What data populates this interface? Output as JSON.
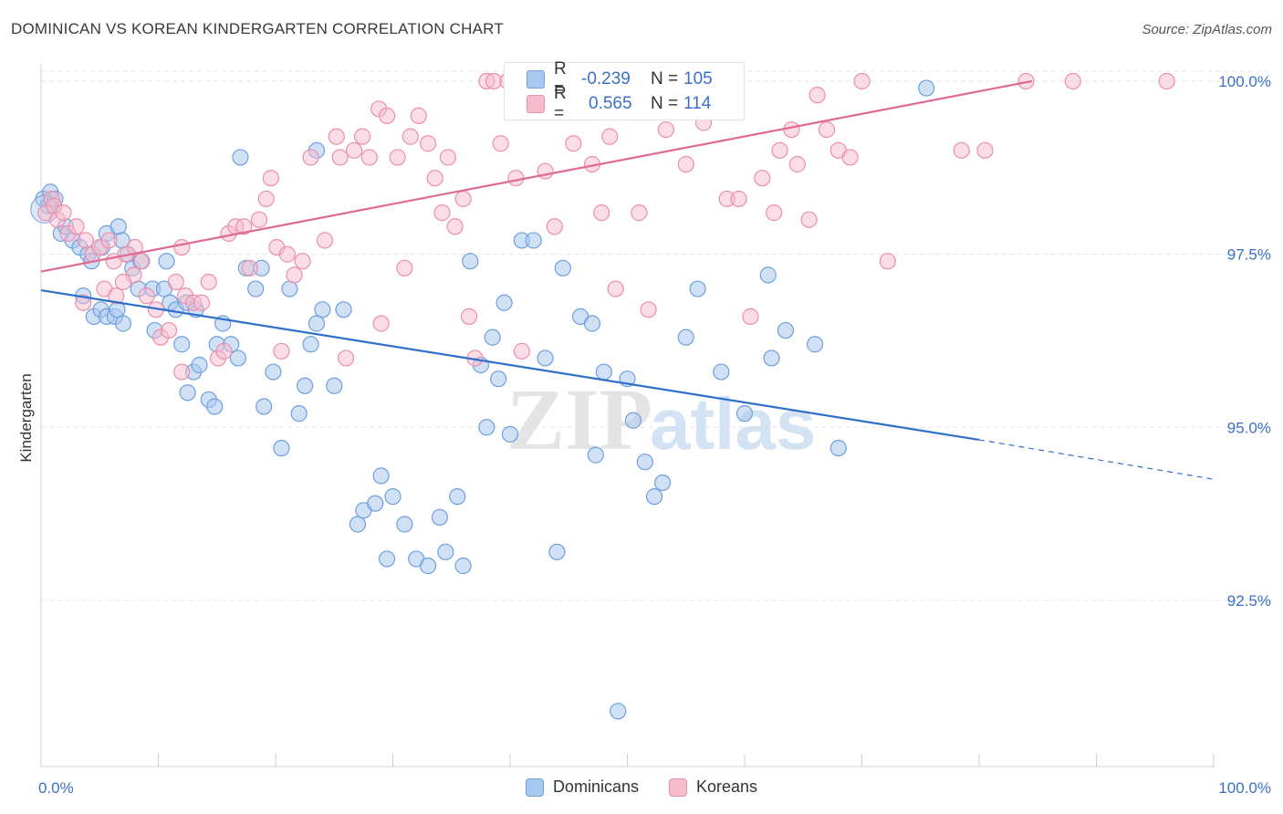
{
  "title": "DOMINICAN VS KOREAN KINDERGARTEN CORRELATION CHART",
  "source": "Source: ZipAtlas.com",
  "watermark": {
    "zip": "ZIP",
    "atlas": "atlas"
  },
  "legend_box": [
    {
      "r_label": "R =",
      "r_value": "-0.239",
      "n_label": "N =",
      "n_value": "105"
    },
    {
      "r_label": "R =",
      "r_value": "0.565",
      "n_label": "N =",
      "n_value": "114"
    }
  ],
  "legend": [
    "Dominicans",
    "Koreans"
  ],
  "colors": {
    "dominicans_fill": "#a9c8ef",
    "dominicans_stroke": "#6f9fdc",
    "dominicans_line": "#2f6fcc",
    "koreans_fill": "#f6bccd",
    "koreans_stroke": "#ea8fab",
    "koreans_line": "#e06a93",
    "tick_label": "#3a70c8"
  },
  "chart_data": {
    "type": "scatter",
    "title": "DOMINICAN VS KOREAN KINDERGARTEN CORRELATION CHART",
    "xlabel": "",
    "ylabel": "Kindergarten",
    "xlim": [
      0,
      100
    ],
    "ylim": [
      90.1,
      100.25
    ],
    "x_ticks_labels": [
      "0.0%",
      "100.0%"
    ],
    "y_ticks": [
      92.5,
      95.0,
      97.5,
      100.0
    ],
    "y_tick_labels": [
      "92.5%",
      "95.0%",
      "97.5%",
      "100.0%"
    ],
    "grid": true,
    "legend_position": "bottom",
    "series": [
      {
        "name": "Dominicans",
        "r": -0.239,
        "n": 105,
        "trend": {
          "x0": 0,
          "y0": 96.98,
          "x1": 80,
          "y1": 94.82,
          "dash_to_x": 100,
          "dash_to_y": 94.25
        },
        "points": [
          [
            0.2,
            98.3
          ],
          [
            0.6,
            98.2
          ],
          [
            0.8,
            98.4
          ],
          [
            1.2,
            98.3
          ],
          [
            1.7,
            97.8
          ],
          [
            2.1,
            97.9
          ],
          [
            2.7,
            97.7
          ],
          [
            3.3,
            97.6
          ],
          [
            4.0,
            97.5
          ],
          [
            4.3,
            97.4
          ],
          [
            5.2,
            97.6
          ],
          [
            5.6,
            97.8
          ],
          [
            6.6,
            97.9
          ],
          [
            6.9,
            97.7
          ],
          [
            7.4,
            97.5
          ],
          [
            7.8,
            97.3
          ],
          [
            8.5,
            97.4
          ],
          [
            3.6,
            96.9
          ],
          [
            4.5,
            96.6
          ],
          [
            5.1,
            96.7
          ],
          [
            5.6,
            96.6
          ],
          [
            6.3,
            96.6
          ],
          [
            6.5,
            96.7
          ],
          [
            7.0,
            96.5
          ],
          [
            8.3,
            97.0
          ],
          [
            9.5,
            97.0
          ],
          [
            9.7,
            96.4
          ],
          [
            10.5,
            97.0
          ],
          [
            10.7,
            97.4
          ],
          [
            11.0,
            96.8
          ],
          [
            11.5,
            96.7
          ],
          [
            12.4,
            96.8
          ],
          [
            13.2,
            96.7
          ],
          [
            12.0,
            96.2
          ],
          [
            12.5,
            95.5
          ],
          [
            13.0,
            95.8
          ],
          [
            13.5,
            95.9
          ],
          [
            14.3,
            95.4
          ],
          [
            14.8,
            95.3
          ],
          [
            15.0,
            96.2
          ],
          [
            15.5,
            96.5
          ],
          [
            16.2,
            96.2
          ],
          [
            16.8,
            96.0
          ],
          [
            17.5,
            97.3
          ],
          [
            18.3,
            97.0
          ],
          [
            18.8,
            97.3
          ],
          [
            19.0,
            95.3
          ],
          [
            19.8,
            95.8
          ],
          [
            20.5,
            94.7
          ],
          [
            21.2,
            97.0
          ],
          [
            22.0,
            95.2
          ],
          [
            22.5,
            95.6
          ],
          [
            23.0,
            96.2
          ],
          [
            23.5,
            96.5
          ],
          [
            24.0,
            96.7
          ],
          [
            25.0,
            95.6
          ],
          [
            25.8,
            96.7
          ],
          [
            27.0,
            93.6
          ],
          [
            27.5,
            93.8
          ],
          [
            28.5,
            93.9
          ],
          [
            29.0,
            94.3
          ],
          [
            29.5,
            93.1
          ],
          [
            30.0,
            94.0
          ],
          [
            31.0,
            93.6
          ],
          [
            32.0,
            93.1
          ],
          [
            33.0,
            93.0
          ],
          [
            34.0,
            93.7
          ],
          [
            34.5,
            93.2
          ],
          [
            35.5,
            94.0
          ],
          [
            36.0,
            93.0
          ],
          [
            36.6,
            97.4
          ],
          [
            37.5,
            95.9
          ],
          [
            38.0,
            95.0
          ],
          [
            38.5,
            96.3
          ],
          [
            39.0,
            95.7
          ],
          [
            39.5,
            96.8
          ],
          [
            40.0,
            94.9
          ],
          [
            41.0,
            97.7
          ],
          [
            42.0,
            97.7
          ],
          [
            43.0,
            96.0
          ],
          [
            44.5,
            97.3
          ],
          [
            46.0,
            96.6
          ],
          [
            47.0,
            96.5
          ],
          [
            47.3,
            94.6
          ],
          [
            48.0,
            95.8
          ],
          [
            50.0,
            95.7
          ],
          [
            50.5,
            95.1
          ],
          [
            51.5,
            94.5
          ],
          [
            52.3,
            94.0
          ],
          [
            53.0,
            94.2
          ],
          [
            55.0,
            96.3
          ],
          [
            56.0,
            97.0
          ],
          [
            58.0,
            95.8
          ],
          [
            62.0,
            97.2
          ],
          [
            63.5,
            96.4
          ],
          [
            66.0,
            96.2
          ],
          [
            17.0,
            98.9
          ],
          [
            23.5,
            99.0
          ],
          [
            40.5,
            100.0
          ],
          [
            60.0,
            95.2
          ],
          [
            62.3,
            96.0
          ],
          [
            68.0,
            94.7
          ],
          [
            75.5,
            99.9
          ],
          [
            44.0,
            93.2
          ],
          [
            49.2,
            90.9
          ]
        ]
      },
      {
        "name": "Koreans",
        "r": 0.565,
        "n": 114,
        "trend": {
          "x0": 0,
          "y0": 97.25,
          "x1": 84.5,
          "y1": 100.0
        },
        "points": [
          [
            0.4,
            98.1
          ],
          [
            0.9,
            98.3
          ],
          [
            1.1,
            98.2
          ],
          [
            1.4,
            98.0
          ],
          [
            1.9,
            98.1
          ],
          [
            2.3,
            97.8
          ],
          [
            3.0,
            97.9
          ],
          [
            3.8,
            97.7
          ],
          [
            4.4,
            97.5
          ],
          [
            5.0,
            97.6
          ],
          [
            5.8,
            97.7
          ],
          [
            6.2,
            97.4
          ],
          [
            7.2,
            97.5
          ],
          [
            7.9,
            97.2
          ],
          [
            8.6,
            97.4
          ],
          [
            3.6,
            96.8
          ],
          [
            5.4,
            97.0
          ],
          [
            6.4,
            96.9
          ],
          [
            7.0,
            97.1
          ],
          [
            8.0,
            97.6
          ],
          [
            9.0,
            96.9
          ],
          [
            9.8,
            96.7
          ],
          [
            10.2,
            96.3
          ],
          [
            10.9,
            96.4
          ],
          [
            11.5,
            97.1
          ],
          [
            12.0,
            97.6
          ],
          [
            12.3,
            96.9
          ],
          [
            13.0,
            96.8
          ],
          [
            13.7,
            96.8
          ],
          [
            14.3,
            97.1
          ],
          [
            15.1,
            96.0
          ],
          [
            15.6,
            96.1
          ],
          [
            16.0,
            97.8
          ],
          [
            16.6,
            97.9
          ],
          [
            17.3,
            97.9
          ],
          [
            17.8,
            97.3
          ],
          [
            18.6,
            98.0
          ],
          [
            19.2,
            98.3
          ],
          [
            19.6,
            98.6
          ],
          [
            20.1,
            97.6
          ],
          [
            20.5,
            96.1
          ],
          [
            21.0,
            97.5
          ],
          [
            21.6,
            97.2
          ],
          [
            22.3,
            97.4
          ],
          [
            23.0,
            98.9
          ],
          [
            24.2,
            97.7
          ],
          [
            25.2,
            99.2
          ],
          [
            25.5,
            98.9
          ],
          [
            26.0,
            96.0
          ],
          [
            26.7,
            99.0
          ],
          [
            27.4,
            99.2
          ],
          [
            28.0,
            98.9
          ],
          [
            28.8,
            99.6
          ],
          [
            29.0,
            96.5
          ],
          [
            29.5,
            99.5
          ],
          [
            30.4,
            98.9
          ],
          [
            31.0,
            97.3
          ],
          [
            31.5,
            99.2
          ],
          [
            32.2,
            99.5
          ],
          [
            33.0,
            99.1
          ],
          [
            33.6,
            98.6
          ],
          [
            34.2,
            98.1
          ],
          [
            34.7,
            98.9
          ],
          [
            35.3,
            97.9
          ],
          [
            36.0,
            98.3
          ],
          [
            36.5,
            96.6
          ],
          [
            37.0,
            96.0
          ],
          [
            38.0,
            100.0
          ],
          [
            38.6,
            100.0
          ],
          [
            39.2,
            99.1
          ],
          [
            39.8,
            100.0
          ],
          [
            40.5,
            98.6
          ],
          [
            41.0,
            96.1
          ],
          [
            41.6,
            100.0
          ],
          [
            42.2,
            99.6
          ],
          [
            43.0,
            98.7
          ],
          [
            43.8,
            97.9
          ],
          [
            44.6,
            100.0
          ],
          [
            45.4,
            99.1
          ],
          [
            46.2,
            99.7
          ],
          [
            47.0,
            98.8
          ],
          [
            47.8,
            98.1
          ],
          [
            48.5,
            99.2
          ],
          [
            49.0,
            97.0
          ],
          [
            49.6,
            99.6
          ],
          [
            50.2,
            100.0
          ],
          [
            51.0,
            98.1
          ],
          [
            51.8,
            96.7
          ],
          [
            53.3,
            99.3
          ],
          [
            54.1,
            100.0
          ],
          [
            55.0,
            98.8
          ],
          [
            56.5,
            99.4
          ],
          [
            57.5,
            100.0
          ],
          [
            58.5,
            98.3
          ],
          [
            59.5,
            98.3
          ],
          [
            60.5,
            96.6
          ],
          [
            61.5,
            98.6
          ],
          [
            62.5,
            98.1
          ],
          [
            63.0,
            99.0
          ],
          [
            64.0,
            99.3
          ],
          [
            64.5,
            98.8
          ],
          [
            65.5,
            98.0
          ],
          [
            66.2,
            99.8
          ],
          [
            67.0,
            99.3
          ],
          [
            68.0,
            99.0
          ],
          [
            69.0,
            98.9
          ],
          [
            70.0,
            100.0
          ],
          [
            72.2,
            97.4
          ],
          [
            78.5,
            99.0
          ],
          [
            80.5,
            99.0
          ],
          [
            84.0,
            100.0
          ],
          [
            88.0,
            100.0
          ],
          [
            96.0,
            100.0
          ],
          [
            12.0,
            95.8
          ]
        ]
      }
    ]
  }
}
